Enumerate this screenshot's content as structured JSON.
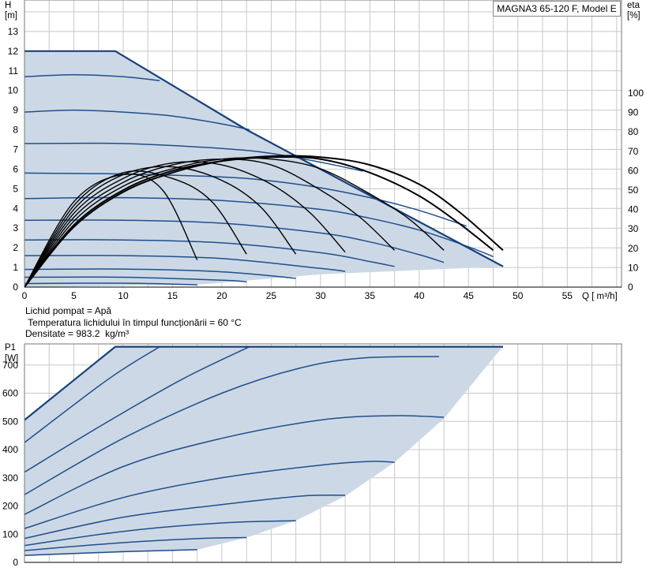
{
  "model_label": "MAGNA3 65-120 F, Model E",
  "fluid_info": {
    "line1": "Lichid pompat = Apă",
    "line2": " Temperatura lichidului în timpul funcționării = 60 °C",
    "line3": "Densitate = 983.2  kg/m³"
  },
  "colors": {
    "curve": "#1f4e8c",
    "envelope": "#17427a",
    "fill": "#ccd8e5",
    "efficiency": "#000000",
    "grid": "#c8c8c8"
  },
  "chart_data": [
    {
      "type": "line",
      "name": "head-chart",
      "ylabel_line1": "H",
      "ylabel_line2": "[m]",
      "y2label_line1": "eta",
      "y2label_line2": "[%]",
      "xlabel": "Q [ m³/h]",
      "xlim": [
        0,
        60.5
      ],
      "ylim": [
        0,
        14.6
      ],
      "y2lim": [
        0,
        148
      ],
      "x_ticks": [
        0,
        5,
        10,
        15,
        20,
        25,
        30,
        35,
        40,
        45,
        50,
        55
      ],
      "y_ticks": [
        0,
        1,
        2,
        3,
        4,
        5,
        6,
        7,
        8,
        9,
        10,
        11,
        12,
        13
      ],
      "y2_ticks": [
        0,
        10,
        20,
        30,
        40,
        50,
        60,
        70,
        80,
        90,
        100
      ],
      "grid": true,
      "envelope": [
        [
          0,
          12
        ],
        [
          9.2,
          12
        ],
        [
          22.5,
          8
        ],
        [
          48.5,
          1.05
        ],
        [
          30,
          0.65
        ],
        [
          17.5,
          0.12
        ],
        [
          0,
          0
        ]
      ],
      "envelope_outline": [
        [
          0,
          12
        ],
        [
          9.2,
          12
        ],
        [
          22.5,
          8
        ],
        [
          48.5,
          1.05
        ]
      ],
      "head_curves": [
        {
          "x": [
            0,
            5,
            10,
            13.7
          ],
          "y": [
            10.7,
            10.8,
            10.7,
            10.5
          ]
        },
        {
          "x": [
            0,
            5,
            10,
            15,
            20,
            22.8
          ],
          "y": [
            8.9,
            9.0,
            8.9,
            8.7,
            8.3,
            8.0
          ]
        },
        {
          "x": [
            0,
            10,
            20,
            25,
            30,
            34.3
          ],
          "y": [
            7.3,
            7.3,
            7.05,
            6.8,
            6.35,
            5.9
          ]
        },
        {
          "x": [
            0,
            10,
            20,
            25,
            30,
            35,
            40,
            44.8
          ],
          "y": [
            5.8,
            5.75,
            5.6,
            5.4,
            5.05,
            4.55,
            3.9,
            3.1
          ]
        },
        {
          "x": [
            0,
            10,
            20,
            30,
            35,
            40,
            45,
            47.5
          ],
          "y": [
            4.5,
            4.55,
            4.4,
            3.95,
            3.5,
            2.9,
            2.05,
            1.55
          ]
        },
        {
          "x": [
            0,
            10,
            20,
            30,
            35,
            40,
            42.5
          ],
          "y": [
            3.4,
            3.4,
            3.25,
            2.75,
            2.3,
            1.65,
            1.25
          ]
        },
        {
          "x": [
            0,
            10,
            20,
            30,
            35,
            37.5
          ],
          "y": [
            2.4,
            2.4,
            2.25,
            1.75,
            1.3,
            1.05
          ]
        },
        {
          "x": [
            0,
            10,
            20,
            30,
            32.5
          ],
          "y": [
            1.6,
            1.6,
            1.45,
            0.95,
            0.8
          ]
        },
        {
          "x": [
            0,
            10,
            20,
            27.5
          ],
          "y": [
            0.9,
            0.92,
            0.78,
            0.45
          ]
        },
        {
          "x": [
            0,
            10,
            20,
            22.5
          ],
          "y": [
            0.5,
            0.5,
            0.35,
            0.27
          ]
        },
        {
          "x": [
            0,
            10,
            17.5
          ],
          "y": [
            0.18,
            0.2,
            0.12
          ]
        }
      ],
      "efficiency_curves": [
        {
          "x": [
            0,
            5,
            10,
            14,
            17.5
          ],
          "y": [
            0,
            44,
            58,
            50,
            14
          ]
        },
        {
          "x": [
            0,
            5,
            10,
            15,
            19,
            22.5
          ],
          "y": [
            0,
            42,
            59,
            56,
            44,
            17
          ]
        },
        {
          "x": [
            0,
            5,
            10,
            15,
            20,
            24,
            27.5
          ],
          "y": [
            0,
            40,
            58,
            62,
            55,
            41,
            17
          ]
        },
        {
          "x": [
            0,
            5,
            10,
            15,
            20,
            25,
            29,
            32.5
          ],
          "y": [
            0,
            38,
            56,
            64,
            63,
            53,
            38,
            18
          ]
        },
        {
          "x": [
            0,
            5,
            10,
            15,
            20,
            25,
            30,
            34,
            37.5
          ],
          "y": [
            0,
            36,
            54,
            63,
            66,
            63,
            50,
            36,
            19
          ]
        },
        {
          "x": [
            0,
            5,
            10,
            15,
            20,
            25,
            30,
            35,
            39,
            42.5
          ],
          "y": [
            0,
            34,
            52,
            61,
            66,
            66,
            61,
            48,
            35,
            19
          ]
        },
        {
          "x": [
            0,
            5,
            10,
            15,
            20,
            25,
            30,
            35,
            40,
            44,
            47.5
          ],
          "y": [
            0,
            32,
            50,
            60,
            65,
            67,
            66,
            59,
            47,
            33,
            19
          ]
        },
        {
          "x": [
            0,
            5,
            10,
            15,
            20,
            25,
            30,
            35,
            40,
            44,
            48.5
          ],
          "y": [
            0,
            31,
            49,
            59,
            65,
            67.5,
            67,
            63,
            53,
            39,
            19
          ]
        }
      ]
    },
    {
      "type": "line",
      "name": "power-chart",
      "ylabel_line1": "P1",
      "ylabel_line2": "[W]",
      "xlim": [
        0,
        60.5
      ],
      "ylim": [
        0,
        775
      ],
      "y_ticks": [
        0,
        100,
        200,
        300,
        400,
        500,
        600,
        700
      ],
      "grid": true,
      "envelope": [
        [
          0,
          505
        ],
        [
          9.2,
          765
        ],
        [
          48.5,
          765
        ],
        [
          47.5,
          725
        ],
        [
          42.5,
          510
        ],
        [
          37.5,
          355
        ],
        [
          32.5,
          235
        ],
        [
          27.5,
          148
        ],
        [
          22.5,
          88
        ],
        [
          17.5,
          45
        ],
        [
          0,
          22
        ]
      ],
      "envelope_outline": [
        [
          0,
          505
        ],
        [
          9.2,
          765
        ],
        [
          48.5,
          765
        ]
      ],
      "power_curves": [
        {
          "x": [
            0,
            8.5,
            13.7
          ],
          "y": [
            425,
            650,
            765
          ]
        },
        {
          "x": [
            0,
            8,
            16,
            22.8
          ],
          "y": [
            320,
            490,
            650,
            765
          ]
        },
        {
          "x": [
            0,
            10,
            20,
            28,
            34.3,
            42
          ],
          "y": [
            240,
            440,
            600,
            690,
            725,
            730
          ]
        },
        {
          "x": [
            0,
            10,
            20,
            30,
            37,
            42.5
          ],
          "y": [
            170,
            340,
            440,
            505,
            520,
            515
          ]
        },
        {
          "x": [
            0,
            10,
            20,
            30,
            35,
            37.5
          ],
          "y": [
            120,
            230,
            300,
            345,
            358,
            355
          ]
        },
        {
          "x": [
            0,
            10,
            20,
            28,
            32.5
          ],
          "y": [
            85,
            160,
            205,
            235,
            238
          ]
        },
        {
          "x": [
            0,
            10,
            20,
            27.5
          ],
          "y": [
            60,
            110,
            140,
            148
          ]
        },
        {
          "x": [
            0,
            10,
            18,
            22.5
          ],
          "y": [
            42,
            70,
            85,
            88
          ]
        },
        {
          "x": [
            0,
            10,
            17.5
          ],
          "y": [
            25,
            38,
            45
          ]
        }
      ]
    }
  ]
}
